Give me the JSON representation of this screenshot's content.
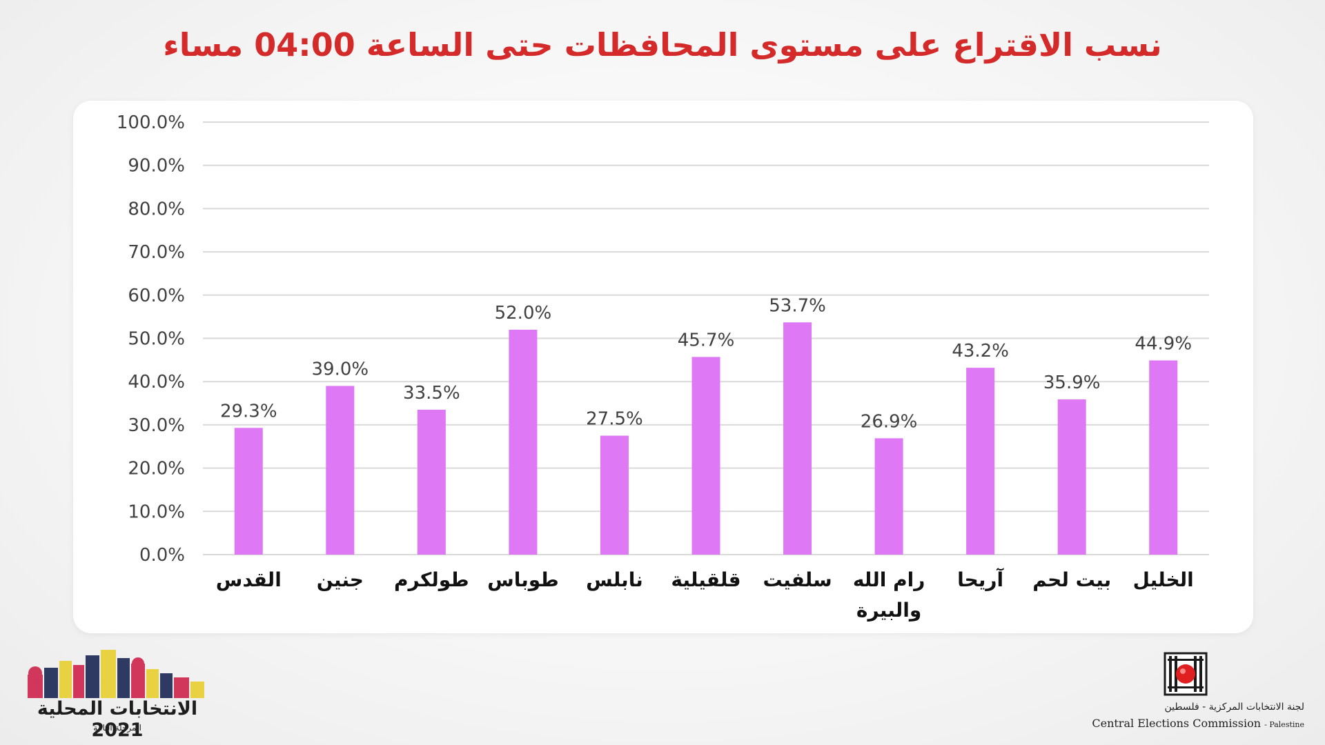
{
  "title": "نسب الاقتراع على مستوى المحافظات حتى الساعة 04:00 مساء",
  "colors": {
    "bar": "#df78f4",
    "title": "#d42a2a",
    "grid": "#d9d9d9"
  },
  "chart_data": {
    "type": "bar",
    "categories": [
      "القدس",
      "جنين",
      "طولكرم",
      "طوباس",
      "نابلس",
      "قلقيلية",
      "سلفيت",
      "رام الله والبيرة",
      "آريحا",
      "بيت لحم",
      "الخليل"
    ],
    "values": [
      29.3,
      39.0,
      33.5,
      52.0,
      27.5,
      45.7,
      53.7,
      26.9,
      43.2,
      35.9,
      44.9
    ],
    "value_labels": [
      "29.3%",
      "39.0%",
      "33.5%",
      "52.0%",
      "27.5%",
      "45.7%",
      "53.7%",
      "26.9%",
      "43.2%",
      "35.9%",
      "44.9%"
    ],
    "y_ticks": [
      "0.0%",
      "10.0%",
      "20.0%",
      "30.0%",
      "40.0%",
      "50.0%",
      "60.0%",
      "70.0%",
      "80.0%",
      "90.0%",
      "100.0%"
    ],
    "ylim": [
      0,
      100
    ],
    "grid": true,
    "legend": "none"
  },
  "footer": {
    "left_logo_text": "الانتخابات المحلية 2021",
    "left_logo_subtext": "المرحلة الثانية",
    "right_logo_arabic": "لجنة الانتخابات المركزية - فلسطين",
    "right_logo_english": "Central Elections Commission",
    "right_logo_english_suffix": "- Palestine"
  }
}
